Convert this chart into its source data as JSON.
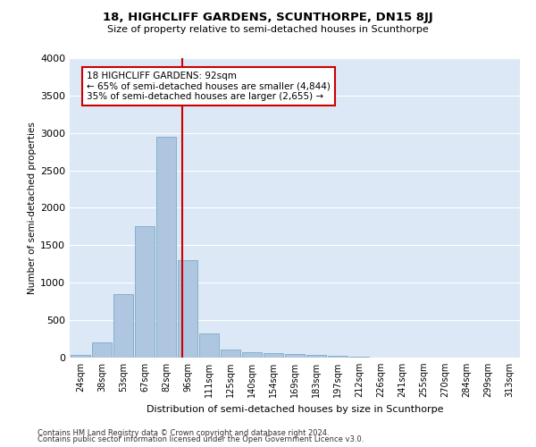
{
  "title": "18, HIGHCLIFF GARDENS, SCUNTHORPE, DN15 8JJ",
  "subtitle": "Size of property relative to semi-detached houses in Scunthorpe",
  "xlabel": "Distribution of semi-detached houses by size in Scunthorpe",
  "ylabel": "Number of semi-detached properties",
  "categories": [
    "24sqm",
    "38sqm",
    "53sqm",
    "67sqm",
    "82sqm",
    "96sqm",
    "111sqm",
    "125sqm",
    "140sqm",
    "154sqm",
    "169sqm",
    "183sqm",
    "197sqm",
    "212sqm",
    "226sqm",
    "241sqm",
    "255sqm",
    "270sqm",
    "284sqm",
    "299sqm",
    "313sqm"
  ],
  "values": [
    30,
    200,
    850,
    1750,
    2950,
    1300,
    325,
    110,
    75,
    60,
    50,
    40,
    20,
    10,
    5,
    3,
    2,
    1,
    1,
    1,
    0
  ],
  "bar_color": "#aec6e0",
  "bar_edge_color": "#7aaac8",
  "red_line_color": "#cc0000",
  "annotation_box_color": "#ffffff",
  "annotation_box_edge_color": "#cc0000",
  "pct_smaller": "65%",
  "pct_smaller_n": "4,844",
  "pct_larger": "35%",
  "pct_larger_n": "2,655",
  "ylim": [
    0,
    4000
  ],
  "yticks": [
    0,
    500,
    1000,
    1500,
    2000,
    2500,
    3000,
    3500,
    4000
  ],
  "background_color": "#dce8f5",
  "grid_color": "#ffffff",
  "footer1": "Contains HM Land Registry data © Crown copyright and database right 2024.",
  "footer2": "Contains public sector information licensed under the Open Government Licence v3.0."
}
